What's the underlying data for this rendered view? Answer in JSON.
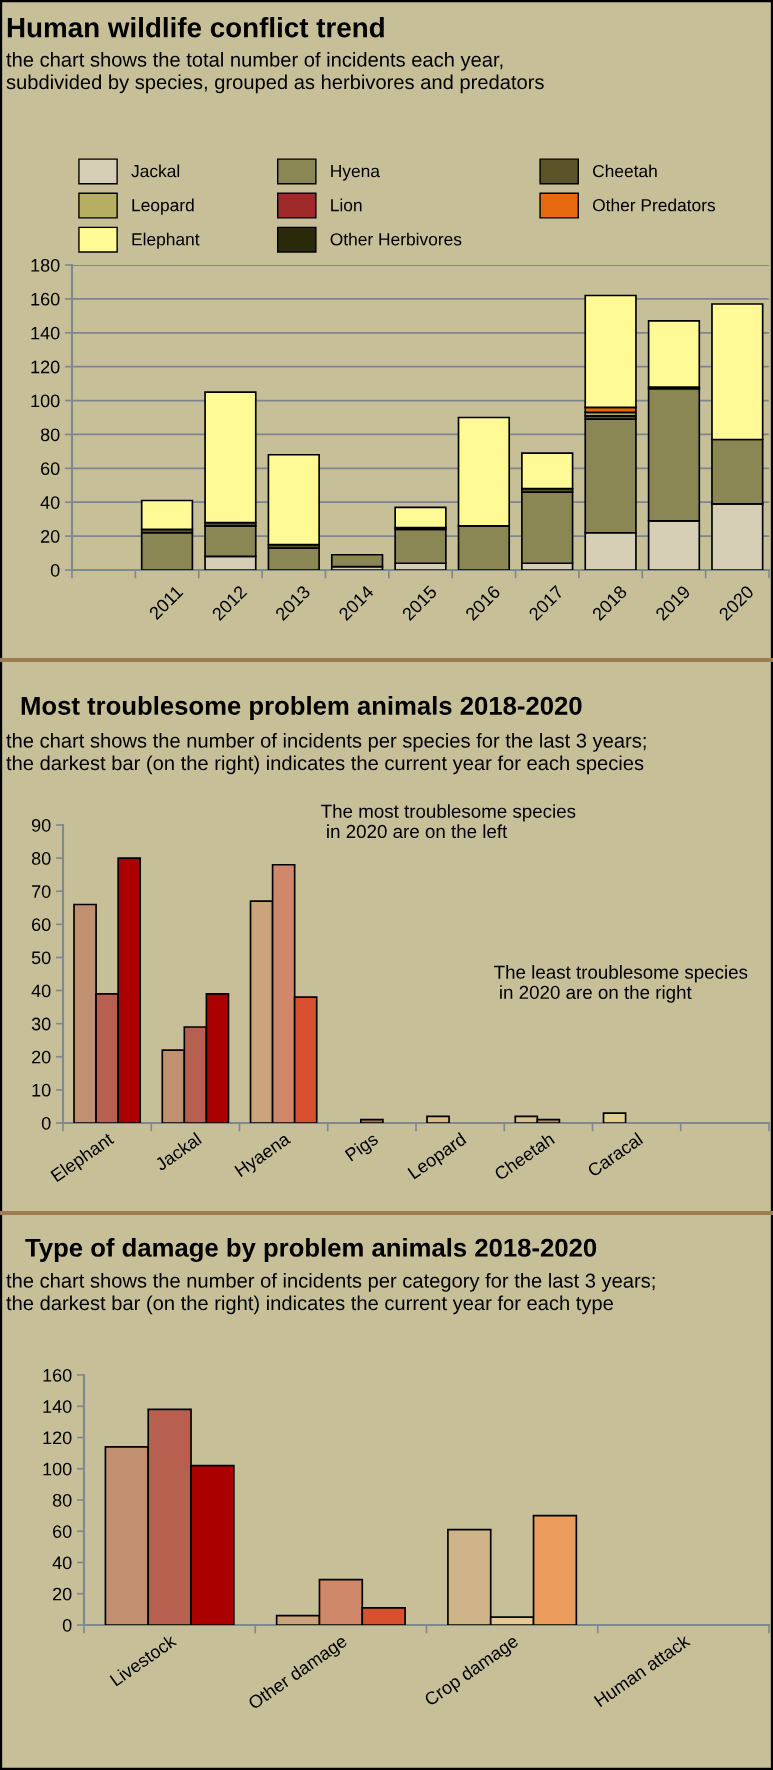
{
  "chart_data": [
    {
      "type": "bar",
      "title": "Human wildlife conflict trend",
      "subtitle": "the chart shows the total number of incidents each year,\nsubdivided by species, grouped as herbivores and predators",
      "stacked": true,
      "legend": "top",
      "grid": "y",
      "categories": [
        null,
        "2011",
        "2012",
        "2013",
        "2014",
        "2015",
        "2016",
        "2017",
        "2018",
        "2019",
        "2020"
      ],
      "ylim": [
        0,
        180
      ],
      "yticks": [
        0,
        20,
        40,
        60,
        80,
        100,
        120,
        140,
        160,
        180
      ],
      "series": [
        {
          "name": "Jackal",
          "color": "#d6cfb6",
          "values": [
            null,
            null,
            8,
            null,
            2,
            4,
            null,
            4,
            22,
            29,
            39
          ]
        },
        {
          "name": "Hyena",
          "color": "#8b8755",
          "values": [
            null,
            22,
            18,
            13,
            7,
            20,
            26,
            42,
            67,
            78,
            38
          ]
        },
        {
          "name": "Cheetah",
          "color": "#5a5428",
          "values": [
            null,
            2,
            2,
            2,
            null,
            1,
            null,
            2,
            2,
            1,
            null
          ]
        },
        {
          "name": "Leopard",
          "color": "#b6ae62",
          "values": [
            null,
            null,
            null,
            null,
            null,
            null,
            null,
            null,
            2,
            null,
            null
          ]
        },
        {
          "name": "Lion",
          "color": "#9e2a2a",
          "values": [
            null,
            null,
            null,
            null,
            null,
            null,
            null,
            null,
            null,
            null,
            null
          ]
        },
        {
          "name": "Other Predators",
          "color": "#e86a10",
          "values": [
            null,
            null,
            null,
            null,
            null,
            null,
            null,
            null,
            3,
            null,
            null
          ]
        },
        {
          "name": "Elephant",
          "color": "#fffa96",
          "values": [
            null,
            17,
            77,
            53,
            null,
            12,
            64,
            21,
            66,
            39,
            80
          ]
        },
        {
          "name": "Other Herbivores",
          "color": "#2a2a08",
          "values": [
            null,
            null,
            null,
            null,
            null,
            null,
            null,
            null,
            null,
            null,
            null
          ]
        }
      ]
    },
    {
      "type": "bar",
      "title": "Most troublesome problem animals 2018-2020",
      "subtitle": "the chart shows the number of incidents per species for the last 3 years;\nthe darkest bar (on the right) indicates the current year for each species",
      "categories": [
        "Elephant",
        "Jackal",
        "Hyaena",
        "Pigs",
        "Leopard",
        "Cheetah",
        "Caracal",
        null
      ],
      "ylim": [
        0,
        90
      ],
      "yticks": [
        0,
        10,
        20,
        30,
        40,
        50,
        60,
        70,
        80,
        90
      ],
      "annotations": [
        "The most troublesome species\n in 2020 are on the left",
        "The least troublesome species\n in 2020 are on the right"
      ],
      "series": [
        {
          "colors": [
            "#c09070",
            "#c09070",
            "#cca47c",
            "#c09070",
            "#d8bc88",
            "#d8c090",
            "#e0d090",
            "#c09070"
          ],
          "values": [
            66,
            22,
            67,
            null,
            2,
            2,
            3,
            null
          ]
        },
        {
          "colors": [
            "#b86050",
            "#b86050",
            "#d0886a",
            "#a87850",
            "#b86050",
            "#b89060",
            "#b86050",
            "#b86050"
          ],
          "values": [
            39,
            29,
            78,
            1,
            null,
            1,
            null,
            null
          ]
        },
        {
          "colors": [
            "#aa0000",
            "#aa0000",
            "#d85030",
            "#aa0000",
            "#aa0000",
            "#aa0000",
            "#aa0000",
            "#aa0000"
          ],
          "values": [
            80,
            39,
            38,
            null,
            null,
            null,
            null,
            null
          ]
        }
      ]
    },
    {
      "type": "bar",
      "title": "Type of damage by problem animals 2018-2020",
      "subtitle": "the chart shows the number of incidents per category for the last 3 years;\nthe darkest bar (on the right) indicates the current year for each type",
      "categories": [
        "Livestock",
        "Other damage",
        "Crop damage",
        "Human attack"
      ],
      "ylim": [
        0,
        160
      ],
      "yticks": [
        0,
        20,
        40,
        60,
        80,
        100,
        120,
        140,
        160
      ],
      "series": [
        {
          "colors": [
            "#c09070",
            "#cca47c",
            "#ceb488",
            "#c09070"
          ],
          "values": [
            114,
            6,
            61,
            null
          ]
        },
        {
          "colors": [
            "#b86050",
            "#d0886a",
            "#e8c890",
            "#b86050"
          ],
          "values": [
            138,
            29,
            5,
            null
          ]
        },
        {
          "colors": [
            "#aa0000",
            "#d85030",
            "#ec9c5c",
            "#aa0000"
          ],
          "values": [
            102,
            11,
            70,
            null
          ]
        }
      ]
    }
  ]
}
